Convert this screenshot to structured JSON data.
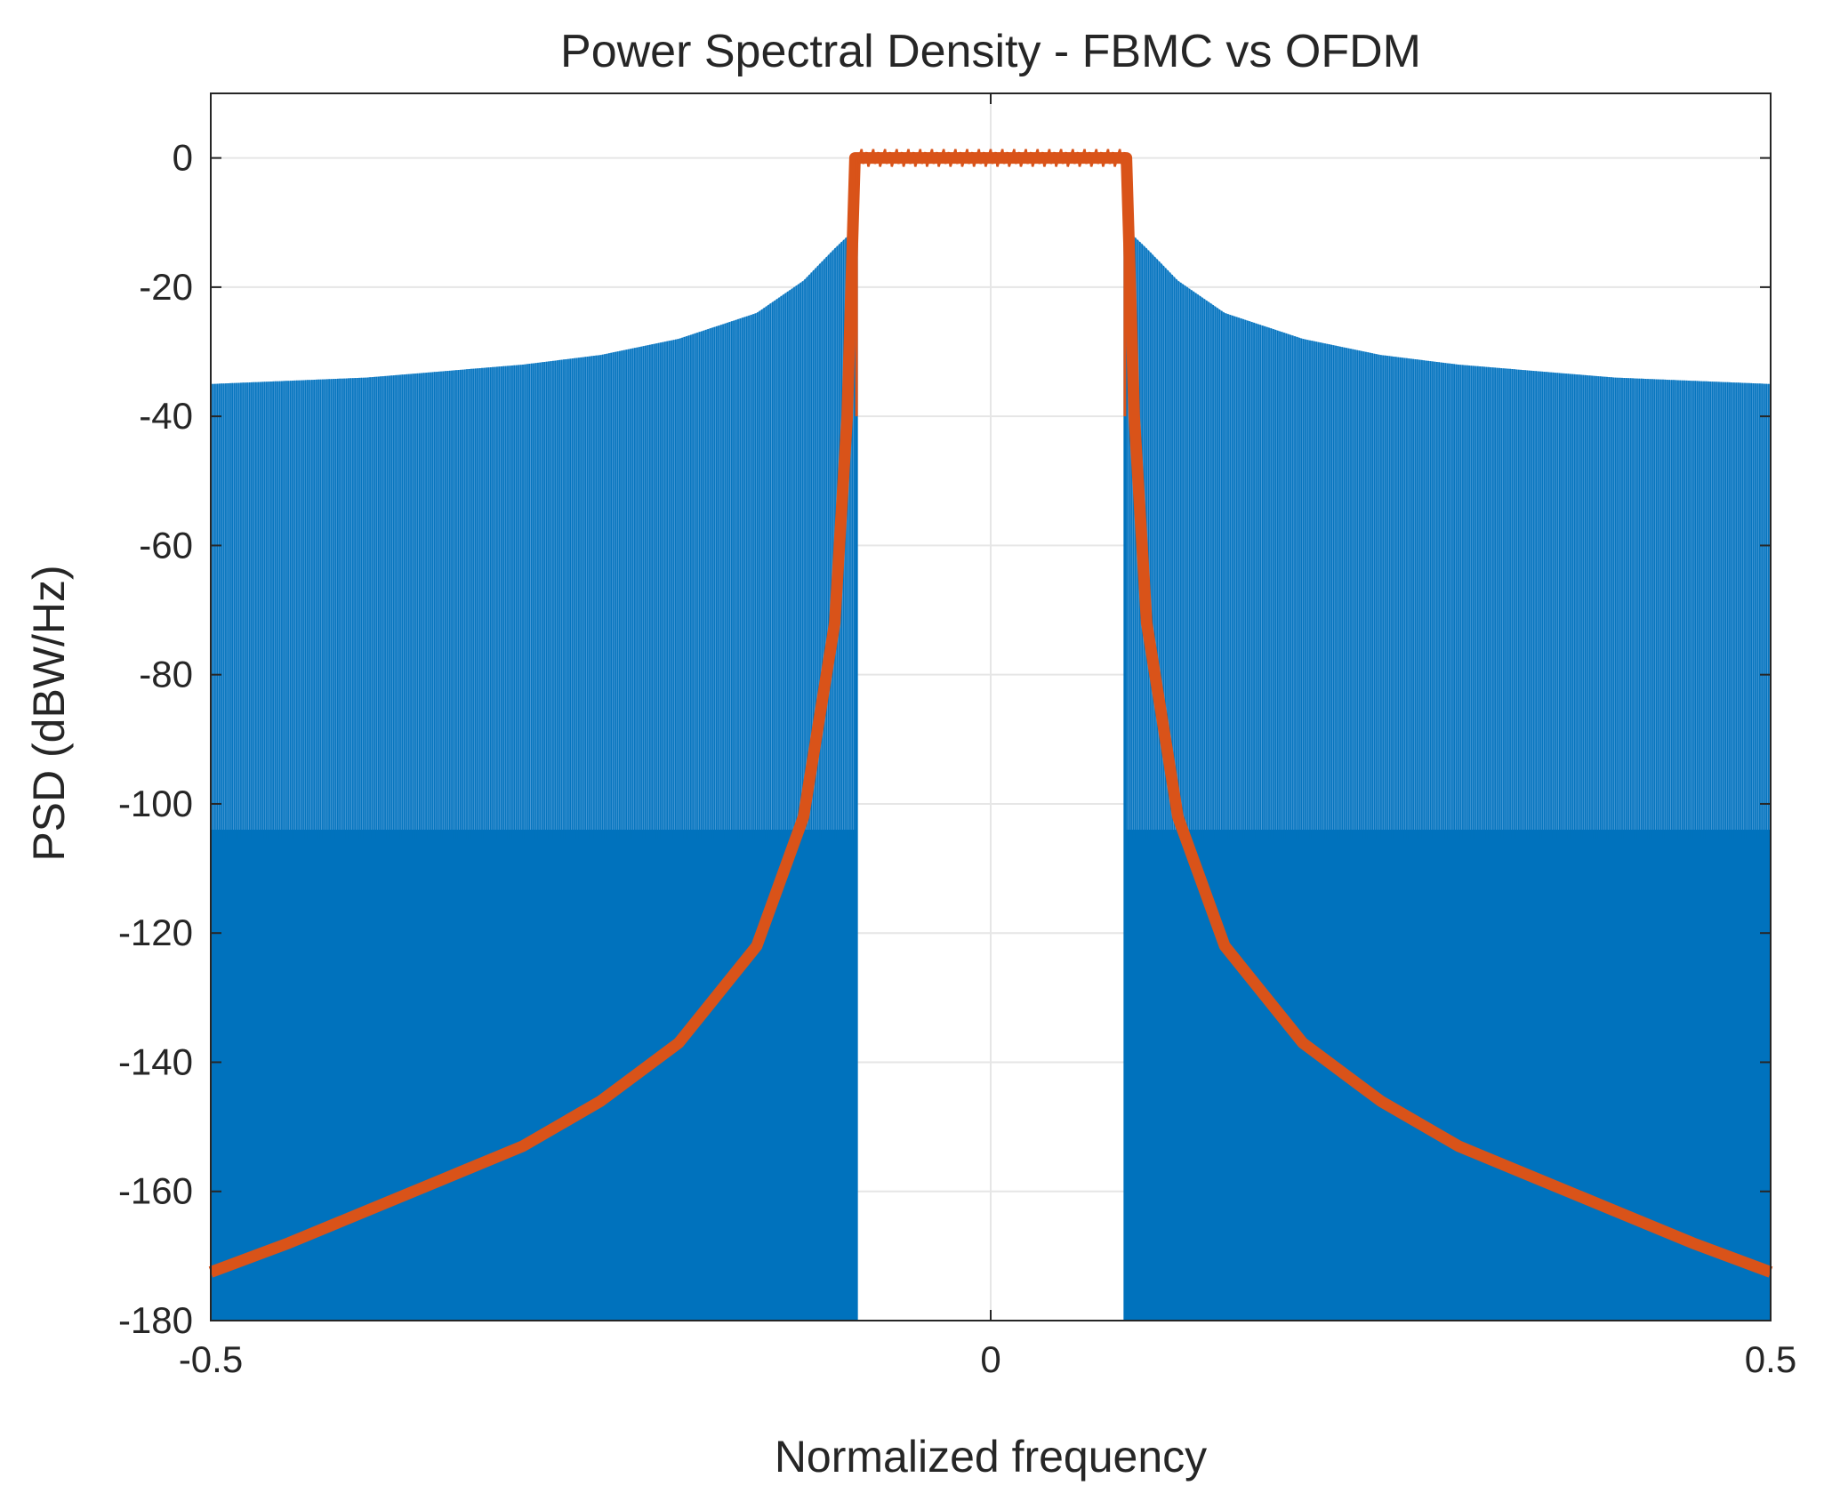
{
  "chart_data": {
    "type": "area",
    "title": "Power Spectral Density - FBMC vs OFDM",
    "xlabel": "Normalized frequency",
    "ylabel": "PSD (dBW/Hz)",
    "xlim": [
      -0.5,
      0.5
    ],
    "ylim": [
      -180,
      10
    ],
    "x_ticks": [
      -0.5,
      0,
      0.5
    ],
    "x_tick_labels": [
      "-0.5",
      "0",
      "0.5"
    ],
    "y_ticks": [
      0,
      -20,
      -40,
      -60,
      -80,
      -100,
      -120,
      -140,
      -160,
      -180
    ],
    "y_tick_labels": [
      "0",
      "-20",
      "-40",
      "-60",
      "-80",
      "-100",
      "-120",
      "-140",
      "-160",
      "-180"
    ],
    "grid": true,
    "colors": {
      "ofdm": "#0072BD",
      "ofdm_light": "#4D9BD6",
      "fbmc": "#D95319",
      "grid": "#e6e6e6",
      "axis": "#262626"
    },
    "series": [
      {
        "name": "OFDM",
        "color": "#0072BD",
        "style": "dense-oscillating-fill",
        "passband": [
          -0.086,
          0.086
        ],
        "envelope_upper": [
          [
            -0.5,
            -35
          ],
          [
            -0.4,
            -34
          ],
          [
            -0.3,
            -32
          ],
          [
            -0.25,
            -30.5
          ],
          [
            -0.2,
            -28
          ],
          [
            -0.15,
            -24
          ],
          [
            -0.12,
            -19
          ],
          [
            -0.1,
            -14
          ],
          [
            -0.087,
            -11
          ],
          [
            0.087,
            -11
          ],
          [
            0.1,
            -14
          ],
          [
            0.12,
            -19
          ],
          [
            0.15,
            -24
          ],
          [
            0.2,
            -28
          ],
          [
            0.25,
            -30.5
          ],
          [
            0.3,
            -32
          ],
          [
            0.4,
            -34
          ],
          [
            0.5,
            -35
          ]
        ],
        "null_floor": -180,
        "dense_fill_top": -104
      },
      {
        "name": "FBMC",
        "color": "#D95319",
        "points": [
          [
            -0.5,
            -172.5
          ],
          [
            -0.45,
            -168
          ],
          [
            -0.4,
            -163
          ],
          [
            -0.35,
            -158
          ],
          [
            -0.3,
            -153
          ],
          [
            -0.25,
            -146
          ],
          [
            -0.2,
            -137
          ],
          [
            -0.15,
            -122
          ],
          [
            -0.12,
            -102
          ],
          [
            -0.1,
            -72
          ],
          [
            -0.092,
            -40
          ],
          [
            -0.087,
            0
          ],
          [
            0,
            0
          ],
          [
            0.087,
            0
          ],
          [
            0.092,
            -40
          ],
          [
            0.1,
            -72
          ],
          [
            0.12,
            -102
          ],
          [
            0.15,
            -122
          ],
          [
            0.2,
            -137
          ],
          [
            0.25,
            -146
          ],
          [
            0.3,
            -153
          ],
          [
            0.35,
            -158
          ],
          [
            0.4,
            -163
          ],
          [
            0.45,
            -168
          ],
          [
            0.5,
            -172.5
          ]
        ]
      }
    ]
  }
}
